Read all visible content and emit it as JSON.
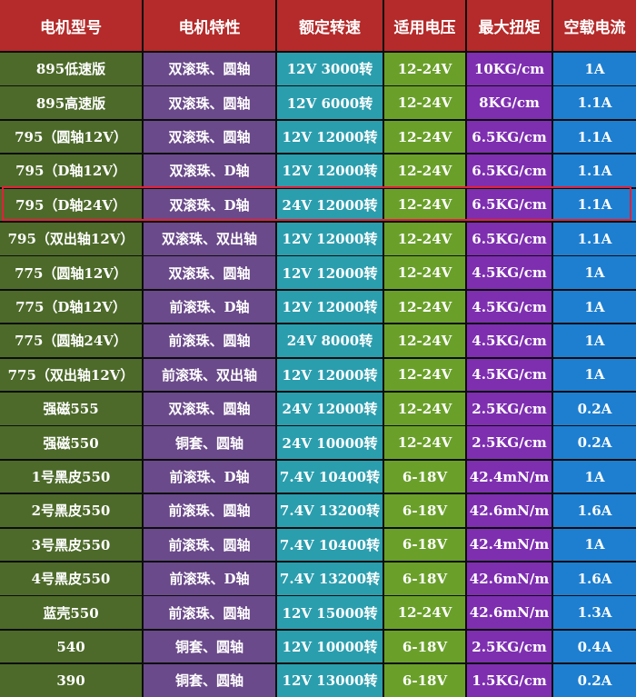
{
  "colors": {
    "header_bg": "#b52a2a",
    "col_model": "#4d6a2a",
    "col_feature": "#6a4a8a",
    "col_speed": "#2b9eae",
    "col_voltage": "#6aa02a",
    "col_torque": "#7e2fb0",
    "col_current": "#1e7fd0",
    "highlight_border": "#e0213a"
  },
  "headers": [
    "电机型号",
    "电机特性",
    "额定转速",
    "适用电压",
    "最大扭矩",
    "空载电流"
  ],
  "rows": [
    [
      "895低速版",
      "双滚珠、圆轴",
      "12V 3000转",
      "12-24V",
      "10KG/cm",
      "1A"
    ],
    [
      "895高速版",
      "双滚珠、圆轴",
      "12V 6000转",
      "12-24V",
      "8KG/cm",
      "1.1A"
    ],
    [
      "795（圆轴12V）",
      "双滚珠、圆轴",
      "12V 12000转",
      "12-24V",
      "6.5KG/cm",
      "1.1A"
    ],
    [
      "795（D轴12V）",
      "双滚珠、D轴",
      "12V 12000转",
      "12-24V",
      "6.5KG/cm",
      "1.1A"
    ],
    [
      "795（D轴24V）",
      "双滚珠、D轴",
      "24V 12000转",
      "12-24V",
      "6.5KG/cm",
      "1.1A"
    ],
    [
      "795（双出轴12V）",
      "双滚珠、双出轴",
      "12V 12000转",
      "12-24V",
      "6.5KG/cm",
      "1.1A"
    ],
    [
      "775（圆轴12V）",
      "双滚珠、圆轴",
      "12V 12000转",
      "12-24V",
      "4.5KG/cm",
      "1A"
    ],
    [
      "775（D轴12V）",
      "前滚珠、D轴",
      "12V 12000转",
      "12-24V",
      "4.5KG/cm",
      "1A"
    ],
    [
      "775（圆轴24V）",
      "前滚珠、圆轴",
      "24V 8000转",
      "12-24V",
      "4.5KG/cm",
      "1A"
    ],
    [
      "775（双出轴12V）",
      "前滚珠、双出轴",
      "12V 12000转",
      "12-24V",
      "4.5KG/cm",
      "1A"
    ],
    [
      "强磁555",
      "双滚珠、圆轴",
      "24V 12000转",
      "12-24V",
      "2.5KG/cm",
      "0.2A"
    ],
    [
      "强磁550",
      "铜套、圆轴",
      "24V 10000转",
      "12-24V",
      "2.5KG/cm",
      "0.2A"
    ],
    [
      "1号黑皮550",
      "前滚珠、D轴",
      "7.4V 10400转",
      "6-18V",
      "42.4mN/m",
      "1A"
    ],
    [
      "2号黑皮550",
      "前滚珠、圆轴",
      "7.4V 13200转",
      "6-18V",
      "42.6mN/m",
      "1.6A"
    ],
    [
      "3号黑皮550",
      "前滚珠、圆轴",
      "7.4V 10400转",
      "6-18V",
      "42.4mN/m",
      "1A"
    ],
    [
      "4号黑皮550",
      "前滚珠、D轴",
      "7.4V 13200转",
      "6-18V",
      "42.6mN/m",
      "1.6A"
    ],
    [
      "蓝壳550",
      "前滚珠、圆轴",
      "12V 15000转",
      "12-24V",
      "42.6mN/m",
      "1.3A"
    ],
    [
      "540",
      "铜套、圆轴",
      "12V 10000转",
      "6-18V",
      "2.5KG/cm",
      "0.4A"
    ],
    [
      "390",
      "铜套、圆轴",
      "12V 13000转",
      "6-18V",
      "1.5KG/cm",
      "0.2A"
    ]
  ],
  "highlighted_model": "795（D轴24V）"
}
